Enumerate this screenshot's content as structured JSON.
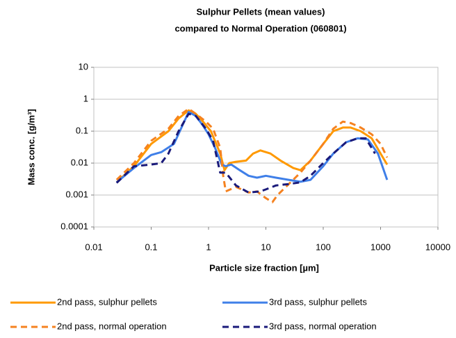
{
  "chart_data": {
    "type": "line",
    "title": "Sulphur Pellets (mean values)",
    "subtitle": "compared to Normal Operation (060801)",
    "x_label": "Particle size fraction [µm]",
    "y_label": "Mass conc. [g/m³]",
    "xlog": true,
    "ylog": true,
    "grid": true,
    "legend": "bottom",
    "xlim": [
      0.01,
      10000
    ],
    "xticks": [
      0.01,
      0.1,
      1,
      10,
      100,
      1000,
      10000
    ],
    "ylim": [
      0.0001,
      10
    ],
    "yticks": [
      0.0001,
      0.001,
      0.01,
      0.1,
      1,
      10
    ],
    "series": [
      {
        "name": "2nd pass, sulphur pellets",
        "color": "#ff9900",
        "dashed": false,
        "x": [
          0.025,
          0.05,
          0.1,
          0.2,
          0.3,
          0.45,
          0.6,
          0.8,
          1.1,
          1.6,
          1.9,
          2.3,
          3,
          4.5,
          6,
          8,
          12,
          18,
          30,
          40,
          60,
          100,
          150,
          220,
          300,
          450,
          700,
          1000,
          1300
        ],
        "values": [
          0.0025,
          0.008,
          0.04,
          0.1,
          0.25,
          0.45,
          0.35,
          0.2,
          0.1,
          0.02,
          0.006,
          0.01,
          0.011,
          0.012,
          0.02,
          0.025,
          0.02,
          0.012,
          0.007,
          0.006,
          0.012,
          0.04,
          0.1,
          0.13,
          0.13,
          0.1,
          0.06,
          0.02,
          0.009
        ]
      },
      {
        "name": "3rd pass, sulphur pellets",
        "color": "#3f7fe8",
        "dashed": false,
        "x": [
          0.025,
          0.05,
          0.1,
          0.15,
          0.25,
          0.35,
          0.45,
          0.6,
          0.8,
          1,
          1.3,
          1.7,
          2,
          2.5,
          3.5,
          5,
          7,
          10,
          15,
          25,
          40,
          60,
          100,
          150,
          250,
          400,
          600,
          900,
          1300
        ],
        "values": [
          0.0025,
          0.007,
          0.018,
          0.022,
          0.04,
          0.15,
          0.4,
          0.3,
          0.15,
          0.08,
          0.03,
          0.009,
          0.008,
          0.009,
          0.006,
          0.004,
          0.0035,
          0.004,
          0.0035,
          0.003,
          0.0026,
          0.003,
          0.008,
          0.02,
          0.045,
          0.06,
          0.055,
          0.02,
          0.003
        ]
      },
      {
        "name": "2nd pass, normal operation",
        "color": "#f58220",
        "dashed": true,
        "x": [
          0.025,
          0.05,
          0.1,
          0.2,
          0.3,
          0.45,
          0.6,
          0.9,
          1.2,
          1.6,
          1.8,
          2,
          3,
          5,
          7,
          10,
          13,
          16,
          40,
          60,
          100,
          150,
          220,
          300,
          450,
          700,
          1000,
          1300
        ],
        "values": [
          0.003,
          0.01,
          0.05,
          0.12,
          0.3,
          0.5,
          0.35,
          0.2,
          0.12,
          0.03,
          0.004,
          0.0013,
          0.0018,
          0.0012,
          0.0013,
          0.0008,
          0.0006,
          0.001,
          0.005,
          0.012,
          0.04,
          0.12,
          0.2,
          0.18,
          0.13,
          0.08,
          0.04,
          0.015
        ]
      },
      {
        "name": "3rd pass, normal operation",
        "color": "#1a1a7a",
        "dashed": true,
        "x": [
          0.025,
          0.05,
          0.1,
          0.15,
          0.2,
          0.3,
          0.45,
          0.6,
          0.9,
          1.2,
          1.6,
          2,
          3,
          5,
          8,
          10,
          15,
          25,
          40,
          60,
          100,
          150,
          250,
          400,
          550,
          800
        ],
        "values": [
          0.0024,
          0.008,
          0.009,
          0.01,
          0.02,
          0.1,
          0.35,
          0.3,
          0.12,
          0.05,
          0.005,
          0.005,
          0.002,
          0.0012,
          0.0013,
          0.0015,
          0.002,
          0.0022,
          0.0025,
          0.004,
          0.01,
          0.02,
          0.045,
          0.06,
          0.06,
          0.02
        ]
      }
    ]
  }
}
